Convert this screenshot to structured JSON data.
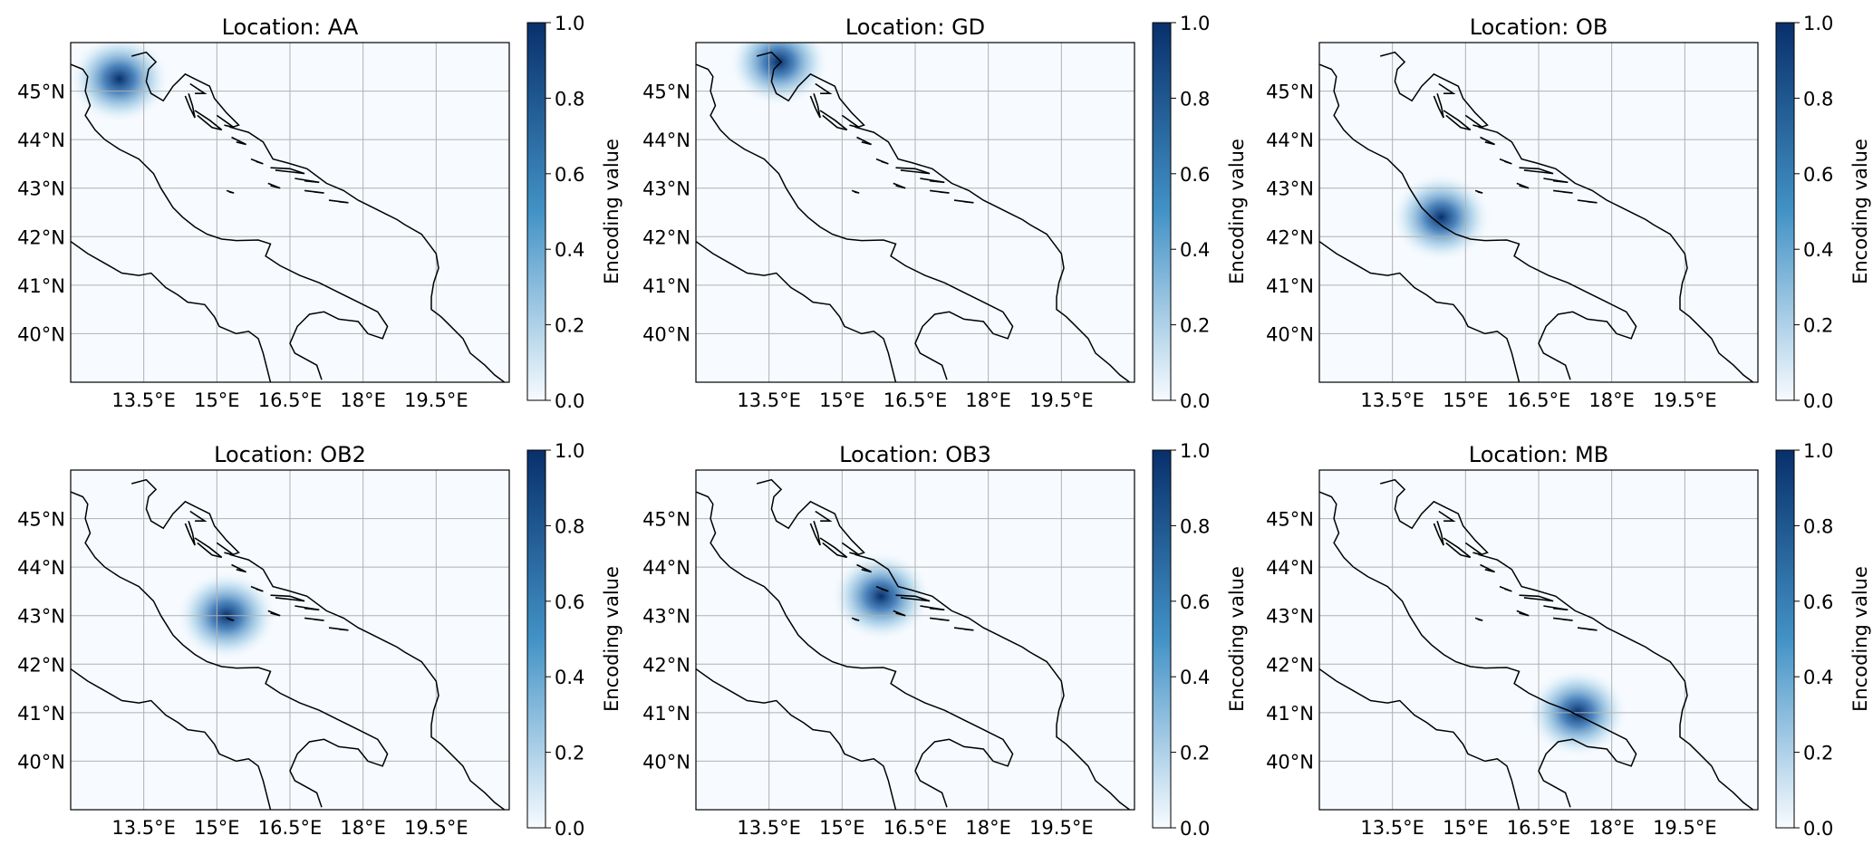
{
  "figure": {
    "colorbar_label": "Encoding value",
    "colorbar_ticks": [
      "0.0",
      "0.2",
      "0.4",
      "0.6",
      "0.8",
      "1.0"
    ],
    "lon_ticks": [
      "13.5°E",
      "15°E",
      "16.5°E",
      "18°E",
      "19.5°E"
    ],
    "lat_ticks": [
      "40°N",
      "41°N",
      "42°N",
      "43°N",
      "44°N",
      "45°N"
    ],
    "colormap": {
      "low": "#f7fbff",
      "mid": "#4292c6",
      "high": "#08306b"
    }
  },
  "chart_data": [
    {
      "type": "heatmap",
      "title": "Location: AA",
      "peak_lon": 13.0,
      "peak_lat": 45.25,
      "peak_value": 1.0,
      "xlim": [
        12.0,
        21.0
      ],
      "ylim": [
        39.0,
        46.0
      ]
    },
    {
      "type": "heatmap",
      "title": "Location: GD",
      "peak_lon": 13.7,
      "peak_lat": 45.6,
      "peak_value": 1.0,
      "xlim": [
        12.0,
        21.0
      ],
      "ylim": [
        39.0,
        46.0
      ]
    },
    {
      "type": "heatmap",
      "title": "Location: OB",
      "peak_lon": 14.5,
      "peak_lat": 42.4,
      "peak_value": 1.0,
      "xlim": [
        12.0,
        21.0
      ],
      "ylim": [
        39.0,
        46.0
      ]
    },
    {
      "type": "heatmap",
      "title": "Location: OB2",
      "peak_lon": 15.2,
      "peak_lat": 43.0,
      "peak_value": 1.0,
      "xlim": [
        12.0,
        21.0
      ],
      "ylim": [
        39.0,
        46.0
      ]
    },
    {
      "type": "heatmap",
      "title": "Location: OB3",
      "peak_lon": 15.8,
      "peak_lat": 43.4,
      "peak_value": 1.0,
      "xlim": [
        12.0,
        21.0
      ],
      "ylim": [
        39.0,
        46.0
      ]
    },
    {
      "type": "heatmap",
      "title": "Location: MB",
      "peak_lon": 17.3,
      "peak_lat": 41.0,
      "peak_value": 1.0,
      "xlim": [
        12.0,
        21.0
      ],
      "ylim": [
        39.0,
        46.0
      ]
    }
  ]
}
